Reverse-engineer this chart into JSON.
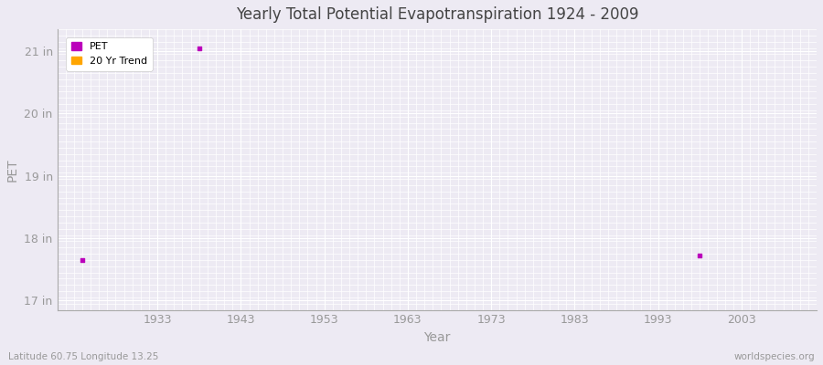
{
  "title": "Yearly Total Potential Evapotranspiration 1924 - 2009",
  "xlabel": "Year",
  "ylabel": "PET",
  "subtitle_left": "Latitude 60.75 Longitude 13.25",
  "subtitle_right": "worldspecies.org",
  "ylim": [
    16.85,
    21.35
  ],
  "yticks": [
    17,
    18,
    19,
    20,
    21
  ],
  "ytick_labels": [
    "17 in",
    "18 in",
    "19 in",
    "20 in",
    "21 in"
  ],
  "xlim": [
    1921,
    2012
  ],
  "xticks": [
    1933,
    1943,
    1953,
    1963,
    1973,
    1983,
    1993,
    2003
  ],
  "background_color": "#edeaf3",
  "plot_bg_color": "#edeaf3",
  "grid_color": "#ffffff",
  "pet_color": "#bb00bb",
  "trend_color": "#ffa500",
  "pet_points": [
    [
      1924,
      17.65
    ],
    [
      1938,
      21.05
    ],
    [
      1998,
      17.72
    ]
  ],
  "legend_entries": [
    "PET",
    "20 Yr Trend"
  ],
  "legend_colors": [
    "#bb00bb",
    "#ffa500"
  ],
  "title_color": "#444444",
  "tick_color": "#999999",
  "label_color": "#999999",
  "spine_color": "#aaaaaa"
}
